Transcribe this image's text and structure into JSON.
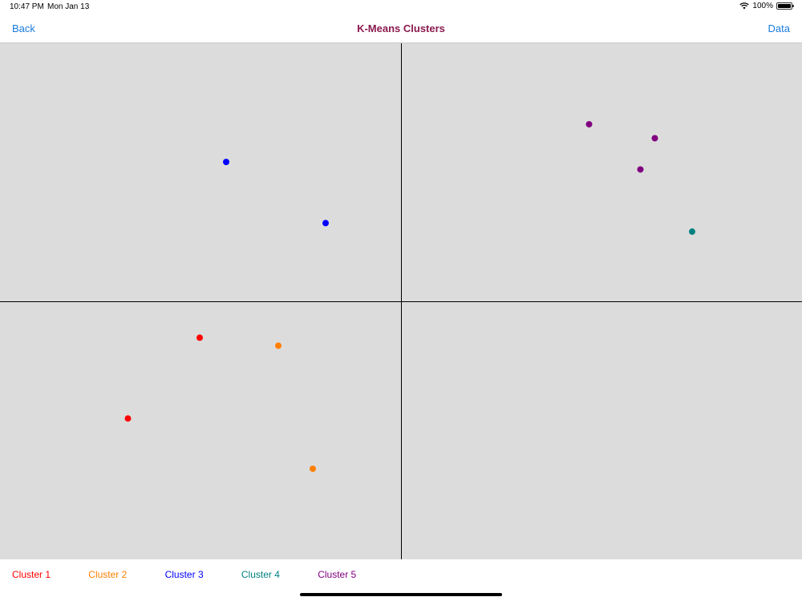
{
  "status_bar": {
    "time": "10:47 PM",
    "date": "Mon Jan 13",
    "battery": "100%"
  },
  "nav": {
    "back_label": "Back",
    "title": "K-Means Clusters",
    "data_label": "Data",
    "title_color": "#8b1a4f",
    "link_color": "#1a7de0"
  },
  "chart_data": {
    "type": "scatter",
    "xlim": [
      -1,
      1
    ],
    "ylim": [
      -1,
      1
    ],
    "axes": "crosshair at origin",
    "grid": false,
    "legend_position": "bottom",
    "series": [
      {
        "name": "Cluster 1",
        "color": "#ff0000",
        "points": [
          [
            -0.502,
            -0.141
          ],
          [
            -0.681,
            -0.454
          ]
        ]
      },
      {
        "name": "Cluster 2",
        "color": "#ff8000",
        "points": [
          [
            -0.306,
            -0.172
          ],
          [
            -0.22,
            -0.649
          ]
        ]
      },
      {
        "name": "Cluster 3",
        "color": "#0000ff",
        "points": [
          [
            -0.436,
            0.54
          ],
          [
            -0.188,
            0.303
          ]
        ]
      },
      {
        "name": "Cluster 4",
        "color": "#008080",
        "points": [
          [
            0.726,
            0.27
          ]
        ]
      },
      {
        "name": "Cluster 5",
        "color": "#800080",
        "points": [
          [
            0.469,
            0.686
          ],
          [
            0.633,
            0.632
          ],
          [
            0.597,
            0.511
          ]
        ]
      }
    ]
  }
}
